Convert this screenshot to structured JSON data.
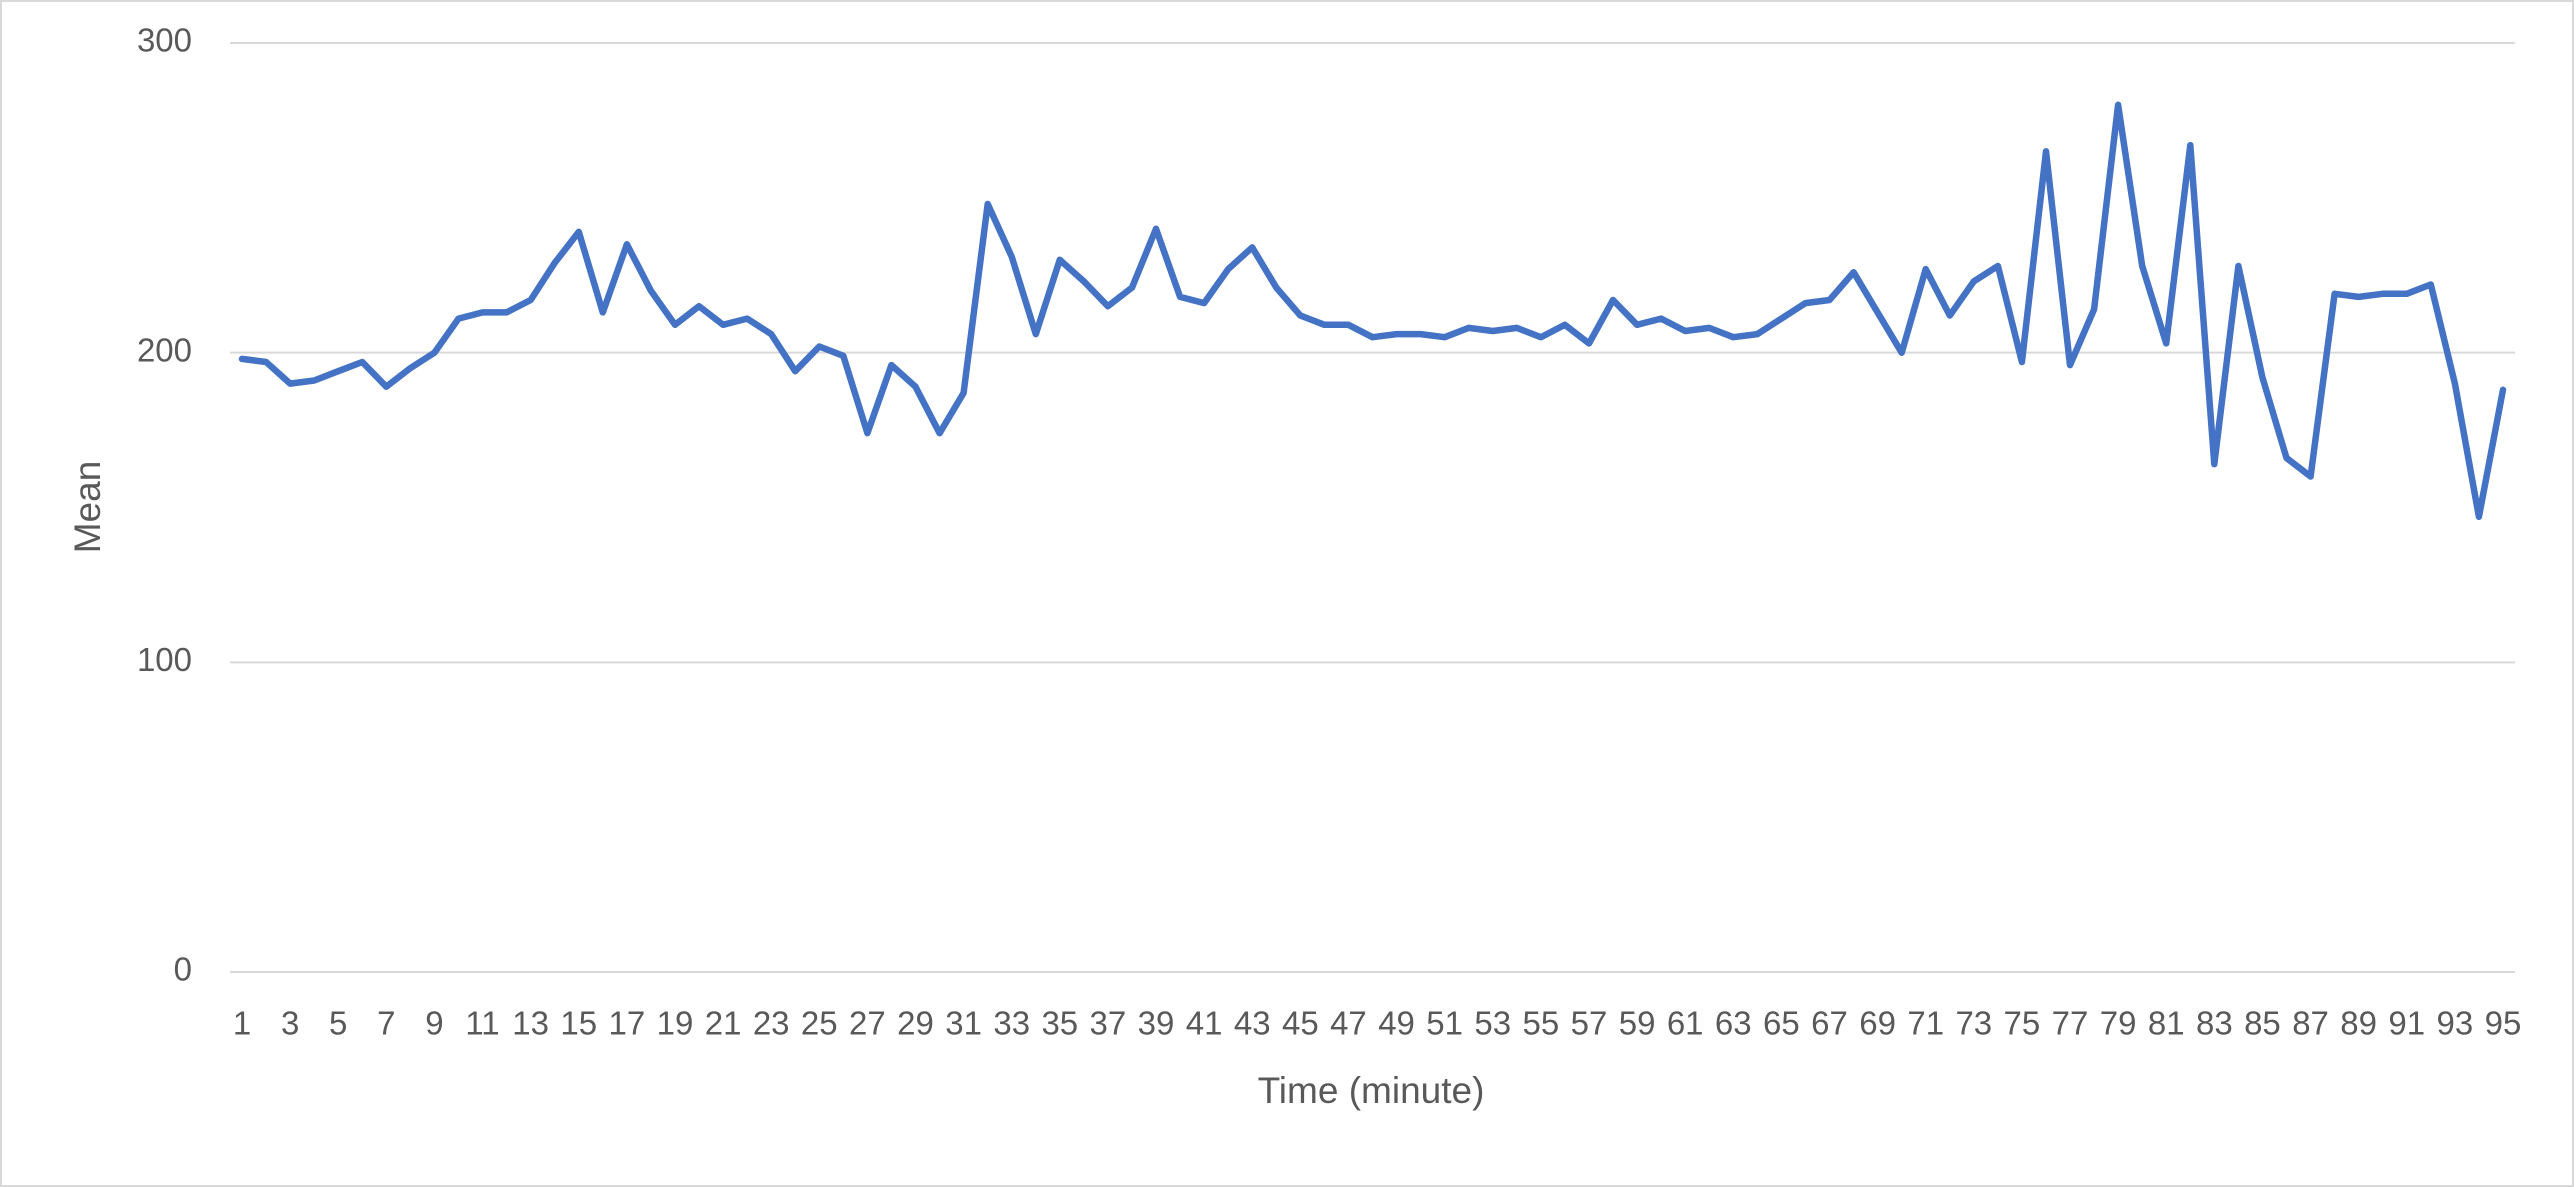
{
  "chart_data": {
    "type": "line",
    "x_label": "Time (minute)",
    "y_label": "Mean",
    "categories": [
      1,
      null,
      3,
      null,
      5,
      null,
      7,
      null,
      9,
      null,
      11,
      null,
      13,
      null,
      15,
      null,
      17,
      null,
      19,
      null,
      21,
      null,
      23,
      null,
      25,
      null,
      27,
      null,
      29,
      null,
      31,
      null,
      33,
      null,
      35,
      null,
      37,
      null,
      39,
      null,
      41,
      null,
      43,
      null,
      45,
      null,
      47,
      null,
      49,
      null,
      51,
      null,
      53,
      null,
      55,
      null,
      57,
      null,
      59,
      null,
      61,
      null,
      63,
      null,
      65,
      null,
      67,
      null,
      69,
      null,
      71,
      null,
      73,
      null,
      75,
      null,
      77,
      null,
      79,
      null,
      81,
      null,
      83,
      null,
      85,
      null,
      87,
      null,
      89,
      null,
      91,
      null,
      93,
      null,
      95
    ],
    "values": [
      198,
      197,
      190,
      191,
      194,
      197,
      189,
      195,
      200,
      211,
      213,
      213,
      217,
      229,
      239,
      213,
      235,
      220,
      209,
      215,
      209,
      211,
      206,
      194,
      202,
      199,
      174,
      196,
      189,
      174,
      187,
      248,
      231,
      206,
      230,
      223,
      215,
      221,
      240,
      218,
      216,
      227,
      234,
      221,
      212,
      209,
      209,
      205,
      206,
      206,
      205,
      208,
      207,
      208,
      205,
      209,
      203,
      217,
      209,
      211,
      207,
      208,
      205,
      206,
      211,
      216,
      217,
      226,
      213,
      200,
      227,
      212,
      223,
      228,
      197,
      265,
      196,
      214,
      280,
      228,
      203,
      267,
      164,
      228,
      192,
      166,
      160,
      219,
      218,
      219,
      219,
      222,
      190,
      147,
      188
    ],
    "color": "#4472c4",
    "ylim": [
      0,
      300
    ],
    "yticks": [
      0,
      100,
      200,
      300
    ],
    "grid": true
  }
}
